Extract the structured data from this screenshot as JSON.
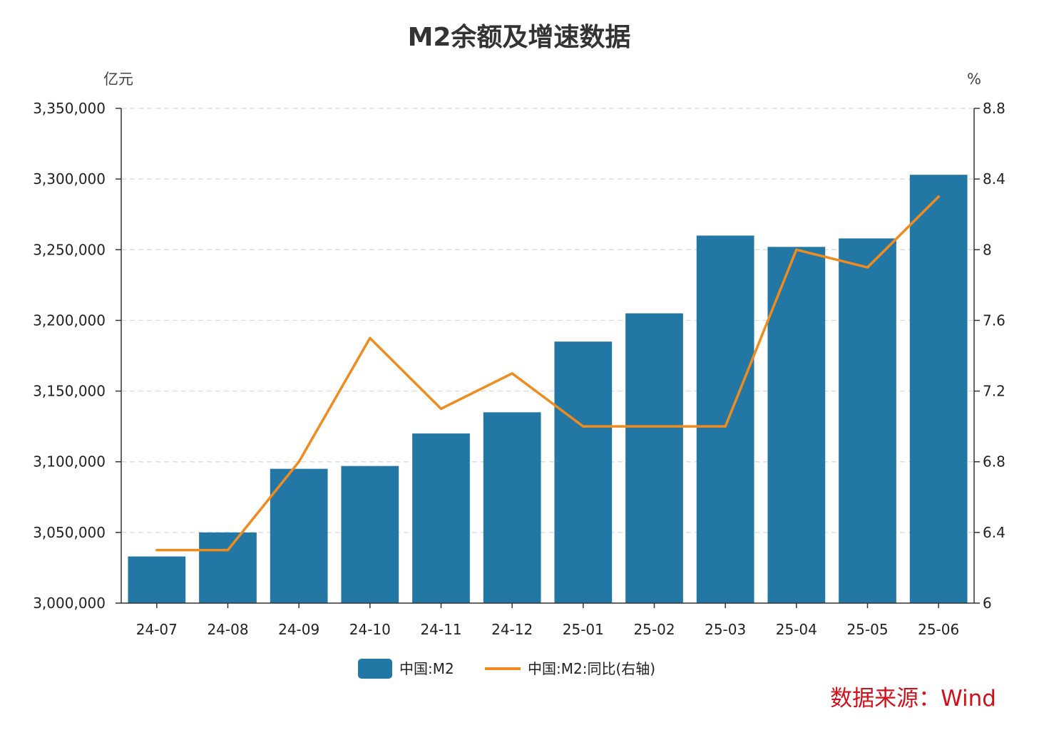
{
  "chart_data": {
    "type": "bar",
    "title": "M2余额及增速数据",
    "categories": [
      "24-07",
      "24-08",
      "24-09",
      "24-10",
      "24-11",
      "24-12",
      "25-01",
      "25-02",
      "25-03",
      "25-04",
      "25-05",
      "25-06"
    ],
    "series": [
      {
        "name": "中国:M2",
        "type": "bar",
        "axis": "left",
        "color": "#2377a4",
        "values": [
          3033000,
          3050000,
          3095000,
          3097000,
          3120000,
          3135000,
          3185000,
          3205000,
          3260000,
          3252000,
          3258000,
          3303000
        ]
      },
      {
        "name": "中国:M2:同比(右轴)",
        "type": "line",
        "axis": "right",
        "color": "#f08c1e",
        "values": [
          6.3,
          6.3,
          6.8,
          7.5,
          7.1,
          7.3,
          7.0,
          7.0,
          7.0,
          8.0,
          7.9,
          8.3
        ]
      }
    ],
    "left_axis": {
      "unit": "亿元",
      "range": [
        3000000,
        3350000
      ],
      "ticks": [
        {
          "value": 3000000,
          "label": "3,000,000"
        },
        {
          "value": 3050000,
          "label": "3,050,000"
        },
        {
          "value": 3100000,
          "label": "3,100,000"
        },
        {
          "value": 3150000,
          "label": "3,150,000"
        },
        {
          "value": 3200000,
          "label": "3,200,000"
        },
        {
          "value": 3250000,
          "label": "3,250,000"
        },
        {
          "value": 3300000,
          "label": "3,300,000"
        },
        {
          "value": 3350000,
          "label": "3,350,000"
        }
      ]
    },
    "right_axis": {
      "unit": "%",
      "range": [
        6,
        8.8
      ],
      "ticks": [
        {
          "value": 6,
          "label": "6"
        },
        {
          "value": 6.4,
          "label": "6.4"
        },
        {
          "value": 6.8,
          "label": "6.8"
        },
        {
          "value": 7.2,
          "label": "7.2"
        },
        {
          "value": 7.6,
          "label": "7.6"
        },
        {
          "value": 8,
          "label": "8"
        },
        {
          "value": 8.4,
          "label": "8.4"
        },
        {
          "value": 8.8,
          "label": "8.8"
        }
      ]
    },
    "grid": true,
    "legend_position": "bottom-center"
  },
  "source": {
    "text": "数据来源：Wind",
    "color": "#d0111b"
  }
}
